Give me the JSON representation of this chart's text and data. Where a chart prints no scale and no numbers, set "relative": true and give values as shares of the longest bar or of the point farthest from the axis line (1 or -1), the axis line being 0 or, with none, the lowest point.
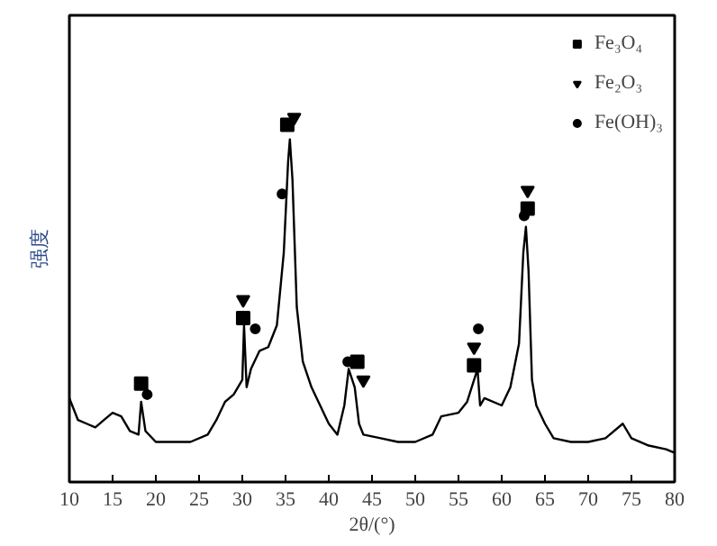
{
  "chart_data": {
    "type": "line",
    "xlabel": "2θ/(°)",
    "ylabel": "强度",
    "relative": true,
    "xlim": [
      10,
      80
    ],
    "xticks": [
      10,
      15,
      20,
      25,
      30,
      35,
      40,
      45,
      50,
      55,
      60,
      65,
      70,
      75,
      80
    ],
    "grid": false,
    "legend": "top right",
    "series": [
      {
        "color": "#000000",
        "marker": "none",
        "line_style": "solid",
        "x": [
          10,
          11,
          12,
          13,
          14,
          15,
          16,
          17,
          18,
          18.3,
          18.8,
          20,
          22,
          24,
          26,
          27,
          28,
          29,
          30,
          30.2,
          30.5,
          31,
          32,
          33,
          34,
          34.8,
          35.3,
          35.5,
          35.8,
          36.3,
          37,
          38,
          39,
          40,
          41,
          41.8,
          42.3,
          43,
          43.5,
          44,
          46,
          48,
          50,
          52,
          53,
          55,
          56,
          57.2,
          57.5,
          58,
          60,
          61,
          62,
          62.5,
          62.8,
          63.1,
          63.5,
          64,
          65,
          66,
          68,
          70,
          72,
          74,
          75,
          77,
          79,
          80
        ],
        "values": [
          0.23,
          0.17,
          0.16,
          0.15,
          0.17,
          0.19,
          0.18,
          0.14,
          0.13,
          0.22,
          0.14,
          0.11,
          0.11,
          0.11,
          0.13,
          0.17,
          0.22,
          0.24,
          0.28,
          0.43,
          0.26,
          0.31,
          0.36,
          0.37,
          0.43,
          0.63,
          0.88,
          0.94,
          0.83,
          0.48,
          0.33,
          0.26,
          0.21,
          0.16,
          0.13,
          0.21,
          0.31,
          0.26,
          0.16,
          0.13,
          0.12,
          0.11,
          0.11,
          0.13,
          0.18,
          0.19,
          0.22,
          0.31,
          0.21,
          0.23,
          0.21,
          0.26,
          0.38,
          0.63,
          0.7,
          0.58,
          0.28,
          0.21,
          0.16,
          0.12,
          0.11,
          0.11,
          0.12,
          0.16,
          0.12,
          0.1,
          0.09,
          0.08
        ]
      },
      {
        "type": "scatter",
        "name": "Fe₃O₄",
        "color": "#000000",
        "marker": "square",
        "x": [
          18.3,
          30.1,
          35.2,
          43.3,
          56.8,
          63.0
        ],
        "values": [
          0.27,
          0.45,
          0.98,
          0.33,
          0.32,
          0.75
        ]
      },
      {
        "type": "scatter",
        "name": "Fe₂O₃",
        "color": "#000000",
        "marker": "triangle",
        "x": [
          30.1,
          36.0,
          44.0,
          56.8,
          63.0
        ],
        "values": [
          0.5,
          1.0,
          0.28,
          0.37,
          0.8
        ]
      },
      {
        "type": "scatter",
        "name": "Fe(OH)₃",
        "color": "#000000",
        "marker": "circle",
        "x": [
          19.0,
          31.5,
          34.6,
          42.2,
          57.3,
          62.6
        ],
        "values": [
          0.24,
          0.42,
          0.79,
          0.33,
          0.42,
          0.73
        ]
      }
    ]
  }
}
